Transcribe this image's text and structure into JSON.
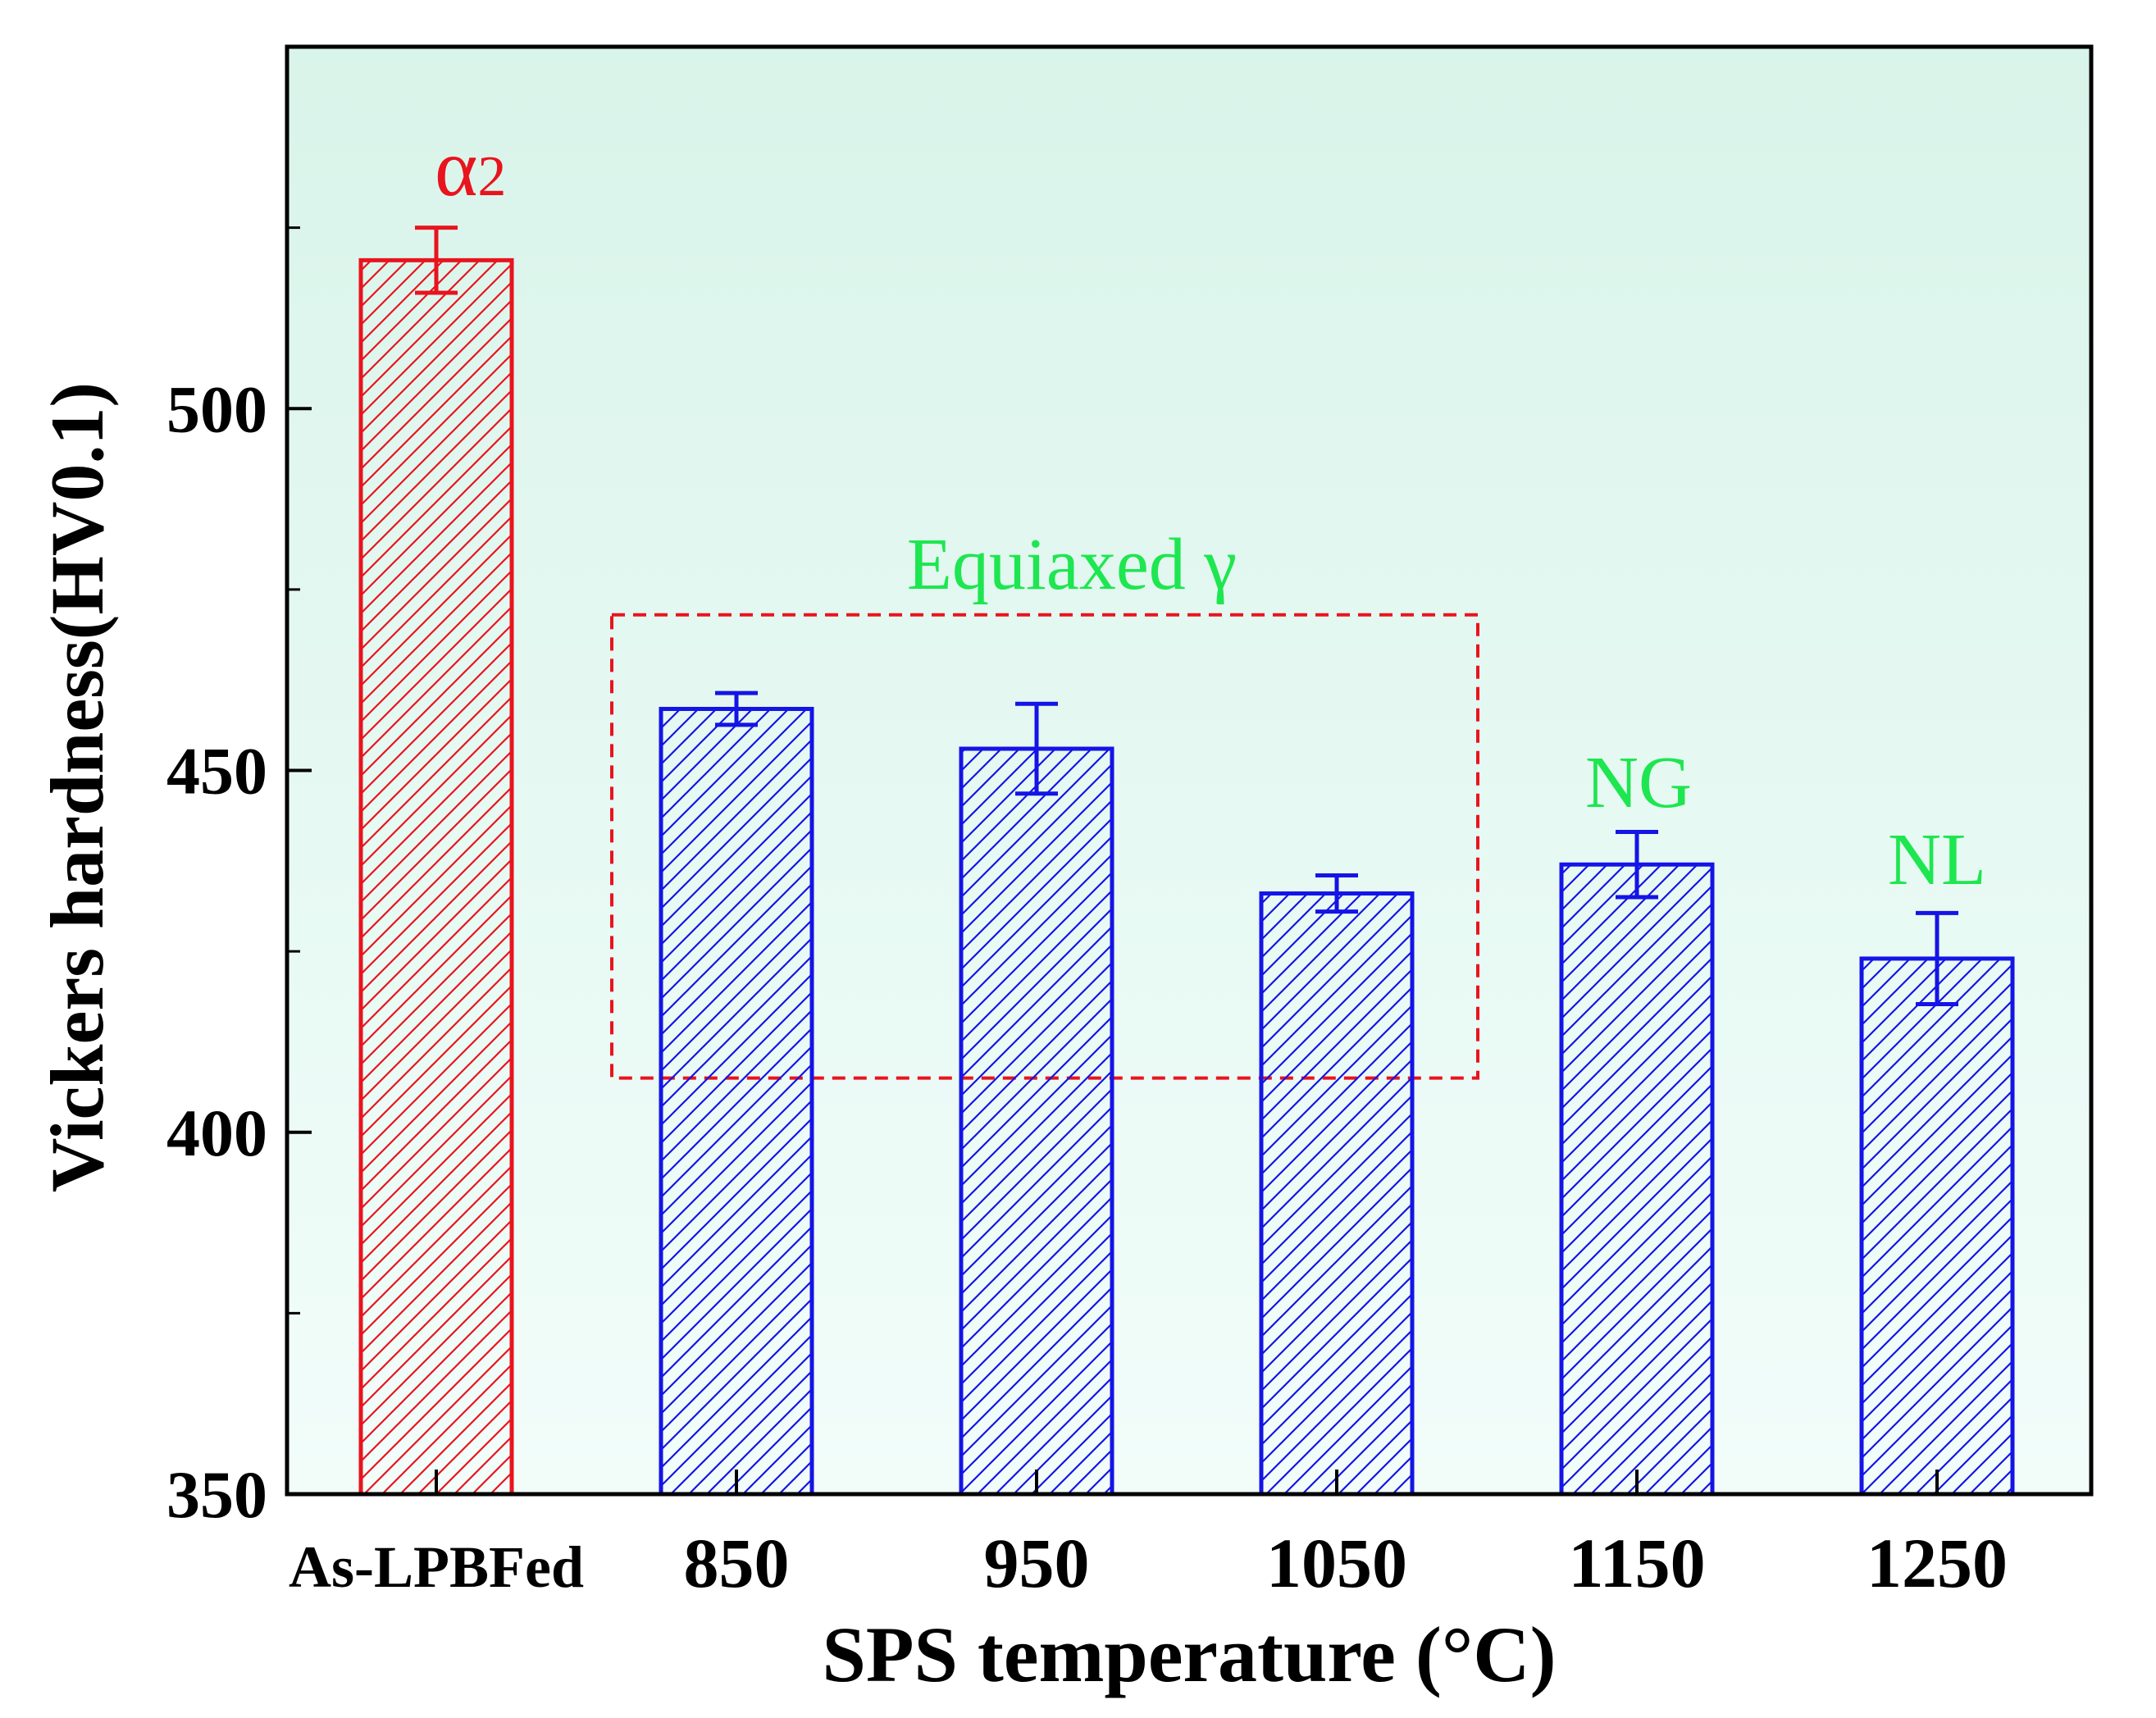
{
  "chart_data": {
    "type": "bar",
    "title": "",
    "xlabel": "SPS temperature (°C)",
    "ylabel": "Vickers hardness(HV0.1)",
    "ylim": [
      350,
      550
    ],
    "yticks": [
      350,
      400,
      450,
      500
    ],
    "grid": false,
    "categories": [
      "As-LPBFed",
      "850",
      "950",
      "1050",
      "1150",
      "1250"
    ],
    "values": [
      520.5,
      458.5,
      453,
      433,
      437,
      424
    ],
    "errors": [
      4.5,
      2.2,
      6.2,
      2.5,
      4.5,
      6.3
    ],
    "bar_colors": [
      "#e8141e",
      "#1414e6",
      "#1414e6",
      "#1414e6",
      "#1414e6",
      "#1414e6"
    ],
    "annotations": {
      "alpha2": {
        "text": "α",
        "sub": "2",
        "color": "#e8141e"
      },
      "equiaxed": {
        "text": "Equiaxed γ",
        "color": "#1ee650"
      },
      "ng": {
        "text": "NG",
        "color": "#1ee650"
      },
      "nl": {
        "text": "NL",
        "color": "#1ee650"
      }
    },
    "highlight_box": {
      "categories": [
        "850",
        "1050"
      ],
      "y_range": [
        407.5,
        471.5
      ],
      "color": "#e8141e",
      "style": "dashed"
    },
    "background_gradient": [
      "#d9f4ea",
      "#f2fdfa"
    ]
  }
}
